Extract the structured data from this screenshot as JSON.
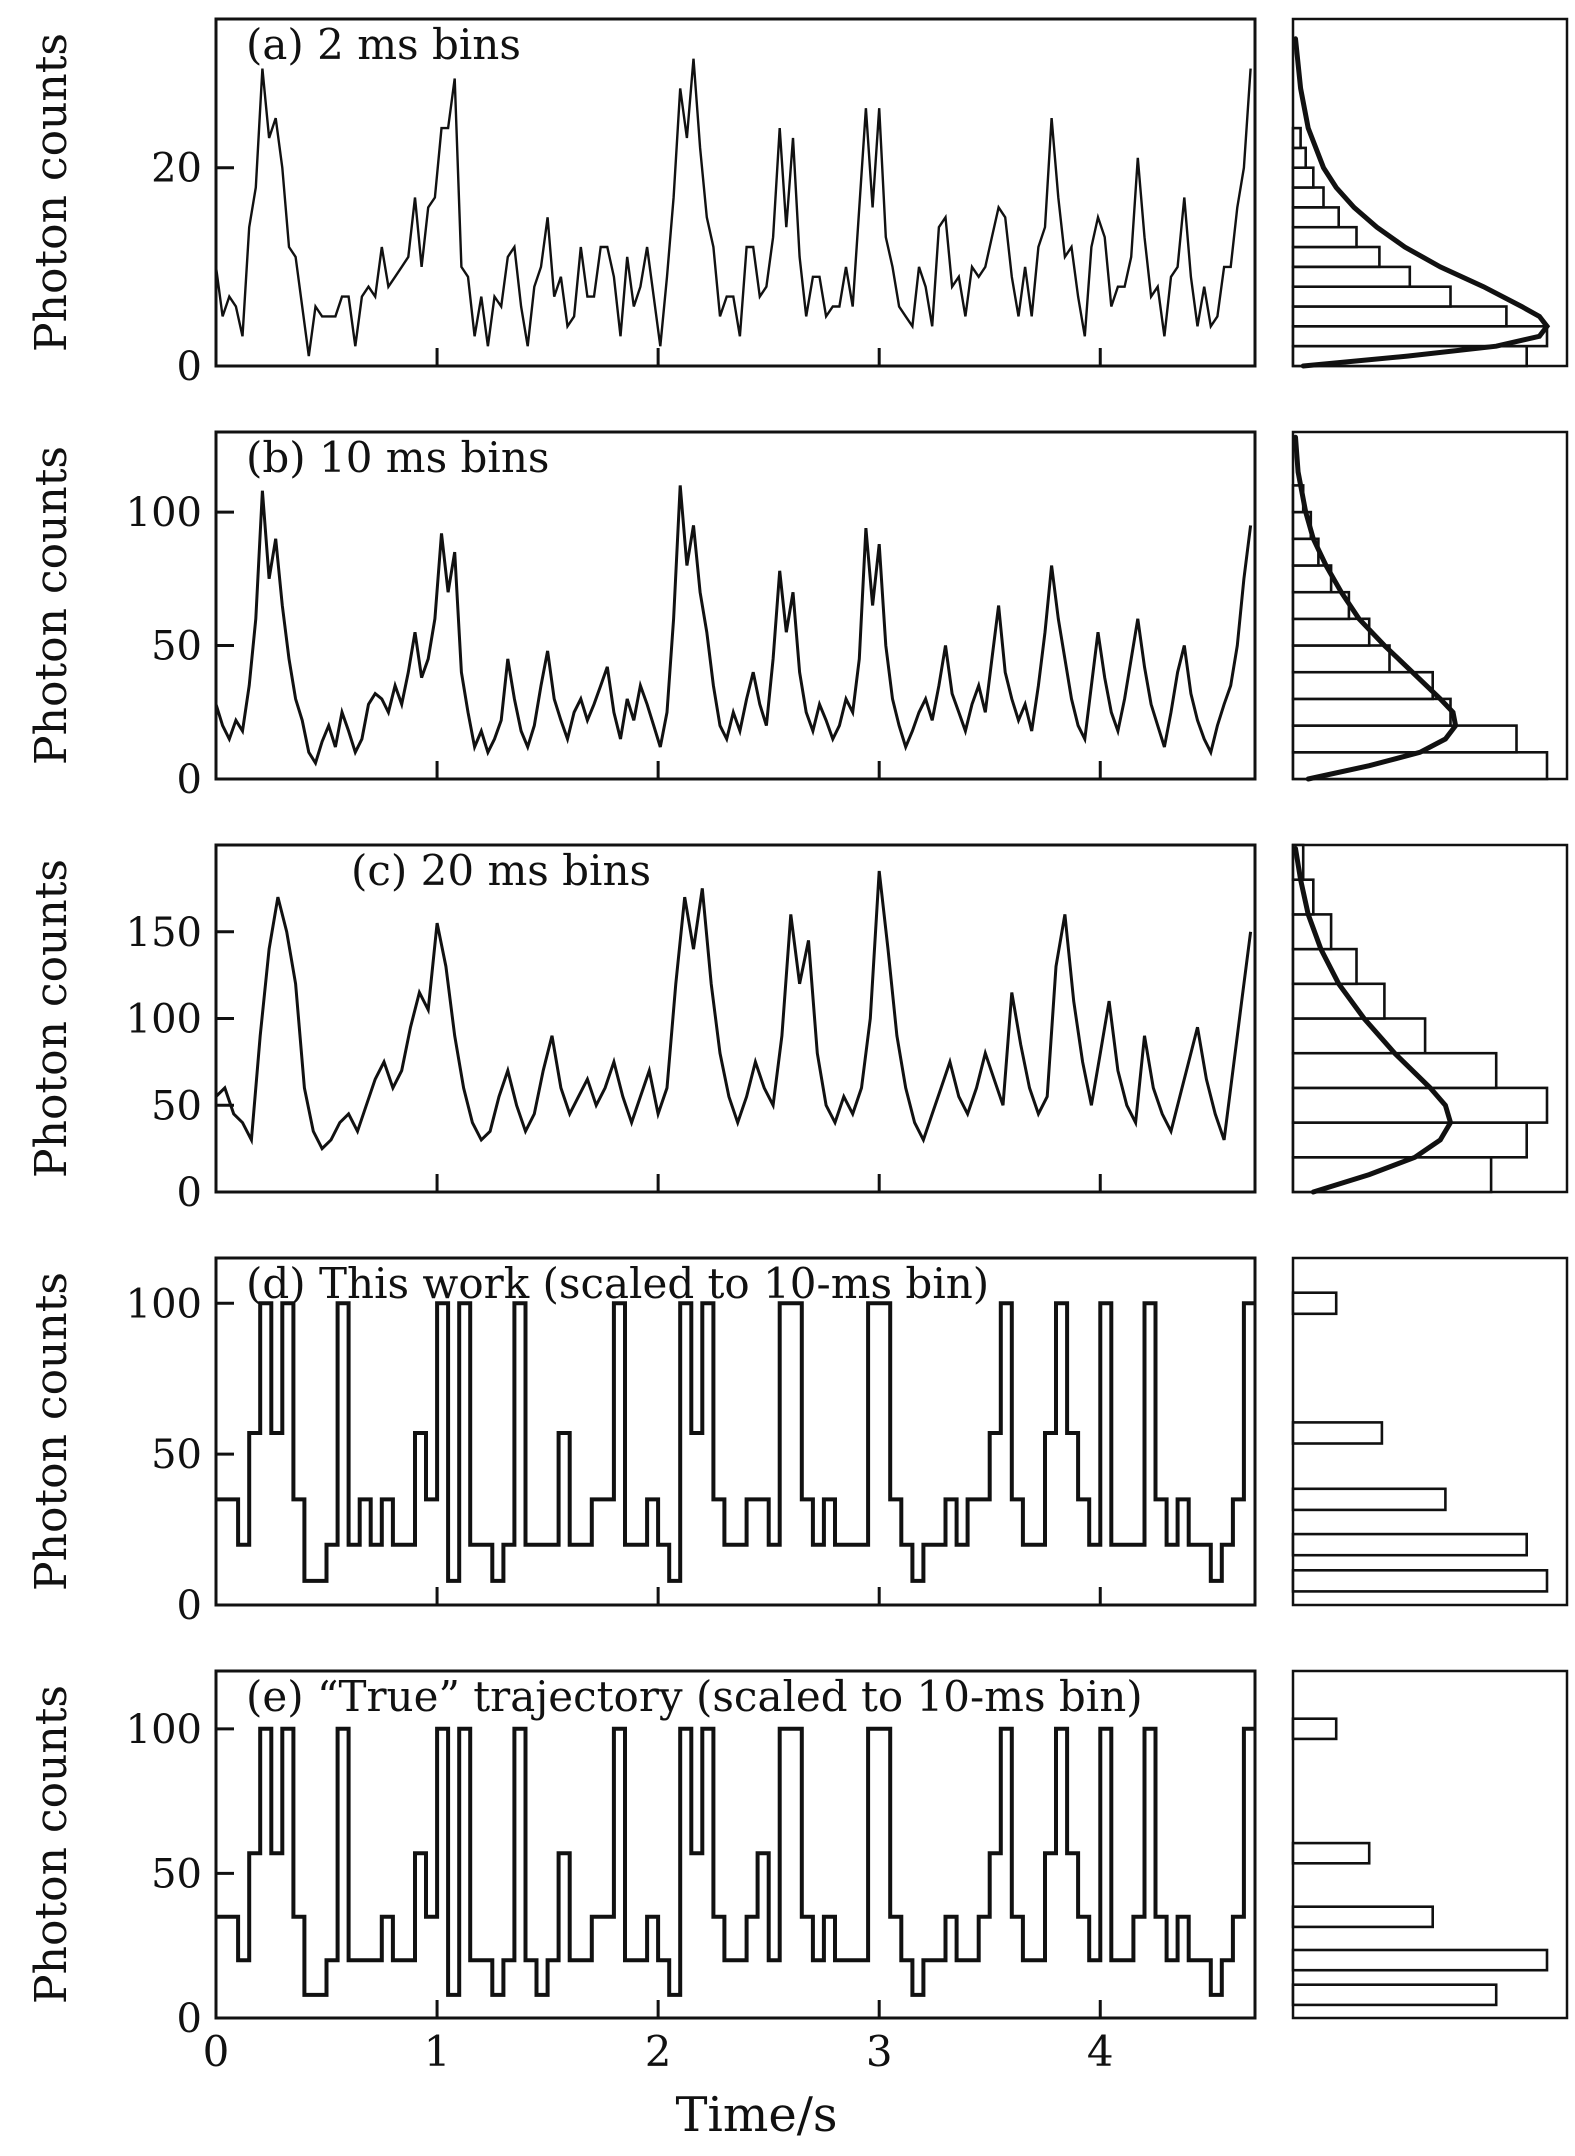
{
  "figure": {
    "ylabel": "Photon counts",
    "xlabel": "Time/s",
    "x_ticks": [
      0,
      1,
      2,
      3,
      4
    ],
    "xlim": [
      0,
      4.7
    ],
    "line_color": "#111111",
    "background": "#ffffff"
  },
  "chart_data": [
    {
      "type": "line",
      "panel": "a",
      "title": "(a) 2 ms bins",
      "ylabel": "Photon counts",
      "yticks": [
        0,
        20
      ],
      "ylim": [
        0,
        35
      ],
      "dt": 0.03,
      "values": [
        10,
        5,
        7,
        6,
        3,
        14,
        18,
        30,
        23,
        25,
        20,
        12,
        11,
        6,
        1,
        6,
        5,
        5,
        5,
        7,
        7,
        2,
        7,
        8,
        7,
        12,
        8,
        9,
        10,
        11,
        17,
        10,
        16,
        17,
        24,
        24,
        29,
        10,
        9,
        3,
        7,
        2,
        7,
        6,
        11,
        12,
        6,
        2,
        8,
        10,
        15,
        7,
        9,
        4,
        5,
        12,
        7,
        7,
        12,
        12,
        9,
        3,
        11,
        6,
        8,
        12,
        7,
        2,
        9,
        17,
        28,
        23,
        31,
        22,
        15,
        12,
        5,
        7,
        7,
        3,
        12,
        12,
        7,
        8,
        13,
        24,
        14,
        23,
        11,
        5,
        9,
        9,
        5,
        6,
        6,
        10,
        6,
        16,
        26,
        16,
        26,
        13,
        10,
        6,
        5,
        4,
        10,
        8,
        4,
        14,
        15,
        8,
        9,
        5,
        10,
        9,
        10,
        13,
        16,
        15,
        9,
        5,
        10,
        5,
        12,
        14,
        25,
        17,
        11,
        12,
        7,
        3,
        12,
        15,
        13,
        6,
        8,
        8,
        11,
        21,
        13,
        7,
        8,
        3,
        9,
        10,
        17,
        9,
        4,
        8,
        4,
        5,
        10,
        10,
        16,
        20,
        30
      ],
      "histogram": {
        "bin_width": 2,
        "bin_centers": [
          1,
          3,
          5,
          7,
          9,
          11,
          13,
          15,
          17,
          19,
          21,
          23
        ],
        "rel_freq": [
          0.92,
          1.0,
          0.84,
          0.62,
          0.46,
          0.34,
          0.25,
          0.18,
          0.12,
          0.08,
          0.05,
          0.03
        ]
      },
      "density_curve": {
        "counts": [
          0,
          1,
          2,
          3,
          4,
          5,
          6,
          8,
          10,
          12,
          14,
          16,
          18,
          20,
          24,
          28,
          33
        ],
        "rel_freq": [
          0.04,
          0.45,
          0.8,
          0.97,
          1.0,
          0.97,
          0.9,
          0.75,
          0.58,
          0.44,
          0.33,
          0.24,
          0.17,
          0.12,
          0.06,
          0.03,
          0.01
        ]
      }
    },
    {
      "type": "line",
      "panel": "b",
      "title": "(b) 10 ms bins",
      "ylabel": "Photon counts",
      "yticks": [
        0,
        50,
        100
      ],
      "ylim": [
        0,
        130
      ],
      "dt": 0.03,
      "values": [
        28,
        20,
        15,
        22,
        18,
        35,
        60,
        108,
        75,
        90,
        65,
        45,
        30,
        22,
        10,
        6,
        14,
        20,
        12,
        25,
        18,
        10,
        15,
        28,
        32,
        30,
        25,
        35,
        28,
        40,
        55,
        38,
        45,
        60,
        92,
        70,
        85,
        40,
        25,
        12,
        18,
        10,
        15,
        22,
        45,
        30,
        18,
        12,
        20,
        35,
        48,
        30,
        22,
        15,
        25,
        30,
        22,
        28,
        35,
        42,
        25,
        15,
        30,
        22,
        35,
        28,
        20,
        12,
        25,
        60,
        110,
        80,
        95,
        70,
        55,
        35,
        20,
        15,
        25,
        18,
        30,
        40,
        28,
        20,
        45,
        78,
        55,
        70,
        40,
        25,
        18,
        28,
        22,
        15,
        20,
        30,
        25,
        45,
        94,
        65,
        88,
        50,
        30,
        20,
        12,
        18,
        25,
        30,
        22,
        35,
        50,
        32,
        25,
        18,
        28,
        35,
        25,
        45,
        65,
        40,
        30,
        22,
        28,
        18,
        35,
        55,
        80,
        60,
        45,
        30,
        20,
        15,
        35,
        55,
        38,
        25,
        18,
        30,
        45,
        60,
        42,
        28,
        20,
        12,
        25,
        40,
        50,
        32,
        22,
        15,
        10,
        20,
        28,
        35,
        50,
        75,
        95
      ],
      "histogram": {
        "bin_width": 10,
        "bin_centers": [
          5,
          15,
          25,
          35,
          45,
          55,
          65,
          75,
          85,
          95,
          105
        ],
        "rel_freq": [
          1.0,
          0.88,
          0.62,
          0.55,
          0.38,
          0.3,
          0.22,
          0.15,
          0.1,
          0.07,
          0.04
        ]
      },
      "density_curve": {
        "counts": [
          0,
          5,
          10,
          15,
          20,
          25,
          30,
          40,
          50,
          60,
          70,
          80,
          90,
          100,
          115,
          128
        ],
        "rel_freq": [
          0.06,
          0.3,
          0.5,
          0.6,
          0.64,
          0.63,
          0.58,
          0.47,
          0.36,
          0.26,
          0.19,
          0.13,
          0.08,
          0.05,
          0.02,
          0.01
        ]
      }
    },
    {
      "type": "line",
      "panel": "c",
      "title": "(c) 20 ms bins",
      "ylabel": "Photon counts",
      "yticks": [
        0,
        50,
        100,
        150
      ],
      "ylim": [
        0,
        200
      ],
      "dt": 0.04,
      "values": [
        55,
        60,
        45,
        40,
        30,
        90,
        140,
        170,
        150,
        120,
        60,
        35,
        25,
        30,
        40,
        45,
        35,
        50,
        65,
        75,
        60,
        70,
        95,
        115,
        105,
        155,
        130,
        90,
        60,
        40,
        30,
        35,
        55,
        70,
        50,
        35,
        45,
        70,
        90,
        60,
        45,
        55,
        65,
        50,
        60,
        75,
        55,
        40,
        55,
        70,
        45,
        60,
        120,
        170,
        140,
        175,
        120,
        80,
        55,
        40,
        55,
        75,
        60,
        50,
        90,
        160,
        120,
        145,
        80,
        50,
        40,
        55,
        45,
        60,
        100,
        185,
        140,
        90,
        60,
        40,
        30,
        45,
        60,
        75,
        55,
        45,
        60,
        80,
        65,
        50,
        115,
        85,
        60,
        45,
        55,
        130,
        160,
        110,
        75,
        50,
        80,
        110,
        70,
        50,
        40,
        90,
        60,
        45,
        35,
        55,
        75,
        95,
        65,
        45,
        30,
        70,
        110,
        150
      ],
      "histogram": {
        "bin_width": 20,
        "bin_centers": [
          10,
          30,
          50,
          70,
          90,
          110,
          130,
          150,
          170,
          190
        ],
        "rel_freq": [
          0.78,
          0.92,
          1.0,
          0.8,
          0.52,
          0.36,
          0.25,
          0.15,
          0.08,
          0.04
        ]
      },
      "density_curve": {
        "counts": [
          0,
          10,
          20,
          30,
          40,
          50,
          60,
          80,
          100,
          120,
          140,
          160,
          180,
          198
        ],
        "rel_freq": [
          0.08,
          0.3,
          0.48,
          0.58,
          0.62,
          0.6,
          0.54,
          0.4,
          0.28,
          0.18,
          0.11,
          0.06,
          0.03,
          0.01
        ]
      }
    },
    {
      "type": "step",
      "panel": "d",
      "title": "(d) This work (scaled to 10-ms bin)",
      "ylabel": "Photon counts",
      "yticks": [
        0,
        50,
        100
      ],
      "ylim": [
        0,
        115
      ],
      "dt": 0.05,
      "values": [
        35,
        35,
        20,
        57,
        100,
        57,
        100,
        35,
        8,
        8,
        20,
        100,
        20,
        35,
        20,
        35,
        20,
        20,
        57,
        35,
        100,
        8,
        100,
        20,
        20,
        8,
        20,
        100,
        20,
        20,
        20,
        57,
        20,
        20,
        35,
        35,
        100,
        20,
        20,
        35,
        20,
        8,
        100,
        57,
        100,
        35,
        20,
        20,
        35,
        35,
        20,
        100,
        100,
        35,
        20,
        35,
        20,
        20,
        20,
        100,
        100,
        35,
        20,
        8,
        20,
        20,
        35,
        20,
        35,
        35,
        57,
        100,
        35,
        20,
        20,
        57,
        100,
        57,
        35,
        20,
        100,
        20,
        20,
        20,
        100,
        35,
        20,
        35,
        20,
        20,
        8,
        20,
        35,
        100
      ],
      "histogram": {
        "bin_width": 7,
        "bin_centers": [
          8,
          20,
          35,
          57,
          100
        ],
        "rel_freq": [
          1.0,
          0.92,
          0.6,
          0.35,
          0.17
        ]
      }
    },
    {
      "type": "step",
      "panel": "e",
      "title": "(e) “True” trajectory (scaled to 10-ms bin)",
      "ylabel": "Photon counts",
      "yticks": [
        0,
        50,
        100
      ],
      "ylim": [
        0,
        120
      ],
      "dt": 0.05,
      "values": [
        35,
        35,
        20,
        57,
        100,
        57,
        100,
        35,
        8,
        8,
        20,
        100,
        20,
        20,
        20,
        35,
        20,
        20,
        57,
        35,
        100,
        8,
        100,
        20,
        20,
        8,
        20,
        100,
        20,
        8,
        20,
        57,
        20,
        20,
        35,
        35,
        100,
        20,
        20,
        35,
        20,
        8,
        100,
        57,
        100,
        35,
        20,
        20,
        35,
        57,
        20,
        100,
        100,
        35,
        20,
        35,
        20,
        20,
        20,
        100,
        100,
        35,
        20,
        8,
        20,
        20,
        35,
        20,
        20,
        35,
        57,
        100,
        35,
        20,
        20,
        57,
        100,
        57,
        35,
        20,
        100,
        20,
        20,
        35,
        100,
        35,
        20,
        35,
        20,
        20,
        8,
        20,
        35,
        100
      ],
      "histogram": {
        "bin_width": 7,
        "bin_centers": [
          8,
          20,
          35,
          57,
          100
        ],
        "rel_freq": [
          0.8,
          1.0,
          0.55,
          0.3,
          0.17
        ]
      }
    }
  ]
}
